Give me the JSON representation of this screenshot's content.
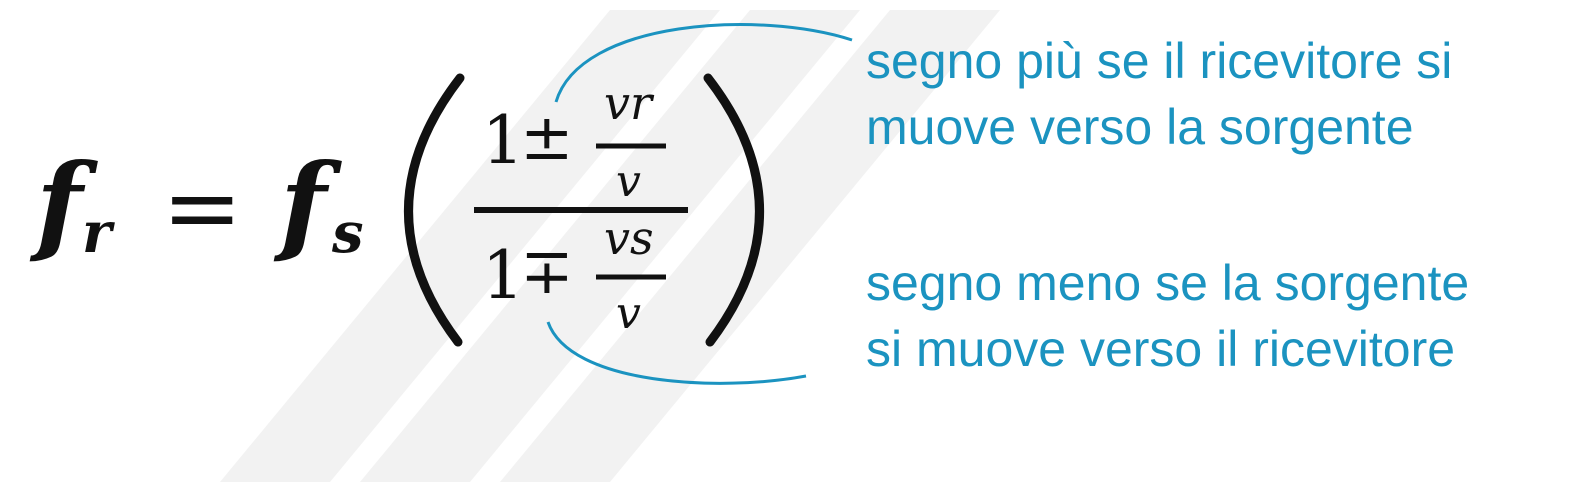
{
  "formula": {
    "f": "f",
    "r": "r",
    "eq": "=",
    "s": "s",
    "one": "1",
    "plus_minus": "±",
    "minus_plus": "∓",
    "vr_v": "v",
    "vr_r": "r",
    "vs_v": "v",
    "vs_s": "s",
    "v": "v"
  },
  "notes": {
    "top": [
      "segno più se il ricevitore si",
      "muove verso la sorgente"
    ],
    "bottom": [
      "segno meno se la sorgente",
      "si muove verso il ricevitore"
    ]
  },
  "colors": {
    "accent": "#1b93c0",
    "formula": "#111111",
    "watermark": "#f1f1f1"
  }
}
